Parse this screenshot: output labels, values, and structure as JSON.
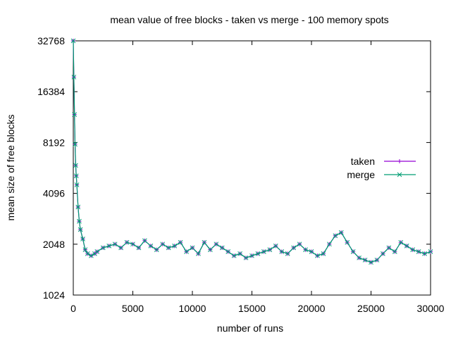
{
  "chart_data": {
    "type": "line",
    "title": "mean value of free blocks - taken vs merge - 100 memory spots",
    "xlabel": "number of runs",
    "ylabel": "mean size of free blocks",
    "x_ticks": [
      0,
      5000,
      10000,
      15000,
      20000,
      25000,
      30000
    ],
    "y_ticks": [
      1024,
      2048,
      4096,
      8192,
      16384,
      32768
    ],
    "xlim": [
      0,
      30000
    ],
    "ylim": [
      1024,
      32768
    ],
    "y_scale": "log2",
    "grid": false,
    "legend_position": "right, middle",
    "series": [
      {
        "name": "taken",
        "color": "#9400d3",
        "marker": "+",
        "x": [
          0,
          50,
          100,
          150,
          200,
          250,
          300,
          400,
          500,
          600,
          800,
          1000,
          1200,
          1500,
          1800,
          2000,
          2500,
          3000,
          3500,
          4000,
          4500,
          5000,
          5500,
          6000,
          6500,
          7000,
          7500,
          8000,
          8500,
          9000,
          9500,
          10000,
          10500,
          11000,
          11500,
          12000,
          12500,
          13000,
          13500,
          14000,
          14500,
          15000,
          15500,
          16000,
          16500,
          17000,
          17500,
          18000,
          18500,
          19000,
          19500,
          20000,
          20500,
          21000,
          21500,
          22000,
          22500,
          23000,
          23500,
          24000,
          24500,
          25000,
          25500,
          26000,
          26500,
          27000,
          27500,
          28000,
          28500,
          29000,
          29500,
          30000
        ],
        "y": [
          32768,
          20000,
          12000,
          8000,
          6000,
          5200,
          4600,
          3400,
          2800,
          2500,
          2200,
          1900,
          1800,
          1750,
          1800,
          1850,
          1950,
          2000,
          2050,
          1950,
          2100,
          2050,
          1950,
          2150,
          2000,
          1900,
          2050,
          1950,
          2000,
          2100,
          1850,
          1950,
          1800,
          2100,
          1900,
          2050,
          1950,
          1850,
          1750,
          1800,
          1700,
          1750,
          1800,
          1850,
          1900,
          2000,
          1850,
          1800,
          1950,
          2050,
          1900,
          1850,
          1750,
          1800,
          2050,
          2300,
          2400,
          2100,
          1850,
          1700,
          1650,
          1600,
          1650,
          1800,
          1950,
          1850,
          2100,
          2000,
          1900,
          1850,
          1800,
          1850
        ]
      },
      {
        "name": "merge",
        "color": "#009e73",
        "marker": "x",
        "x": [
          0,
          50,
          100,
          150,
          200,
          250,
          300,
          400,
          500,
          600,
          800,
          1000,
          1200,
          1500,
          1800,
          2000,
          2500,
          3000,
          3500,
          4000,
          4500,
          5000,
          5500,
          6000,
          6500,
          7000,
          7500,
          8000,
          8500,
          9000,
          9500,
          10000,
          10500,
          11000,
          11500,
          12000,
          12500,
          13000,
          13500,
          14000,
          14500,
          15000,
          15500,
          16000,
          16500,
          17000,
          17500,
          18000,
          18500,
          19000,
          19500,
          20000,
          20500,
          21000,
          21500,
          22000,
          22500,
          23000,
          23500,
          24000,
          24500,
          25000,
          25500,
          26000,
          26500,
          27000,
          27500,
          28000,
          28500,
          29000,
          29500,
          30000
        ],
        "y": [
          32768,
          20000,
          12000,
          8000,
          6000,
          5200,
          4600,
          3400,
          2800,
          2500,
          2200,
          1900,
          1800,
          1750,
          1800,
          1850,
          1950,
          2000,
          2050,
          1950,
          2100,
          2050,
          1950,
          2150,
          2000,
          1900,
          2050,
          1950,
          2000,
          2100,
          1850,
          1950,
          1800,
          2100,
          1900,
          2050,
          1950,
          1850,
          1750,
          1800,
          1700,
          1750,
          1800,
          1850,
          1900,
          2000,
          1850,
          1800,
          1950,
          2050,
          1900,
          1850,
          1750,
          1800,
          2050,
          2300,
          2400,
          2100,
          1850,
          1700,
          1650,
          1600,
          1650,
          1800,
          1950,
          1850,
          2100,
          2000,
          1900,
          1850,
          1800,
          1850
        ]
      }
    ]
  }
}
